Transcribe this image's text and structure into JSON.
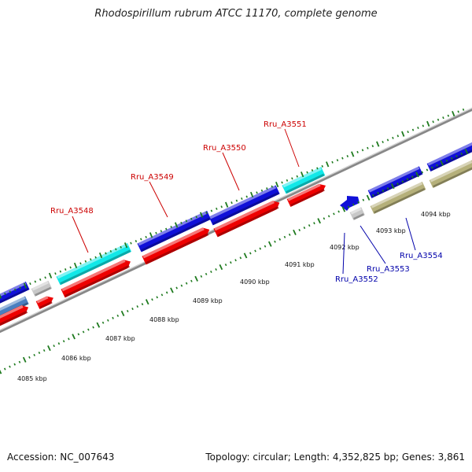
{
  "title": "Rhodospirillum rubrum ATCC 11170, complete genome",
  "footer": {
    "accession": "Accession: NC_007643",
    "summary": "Topology: circular; Length: 4,352,825 bp; Genes: 3,861"
  },
  "colors": {
    "blue_gene": "#1010d8",
    "red_gene": "#ee0000",
    "cyan_gene": "#11e8e8",
    "olive_gene": "#b5b07a",
    "grey_gene": "#c8c8c8",
    "steel_gene": "#4a7fc0",
    "backbone": "#888888",
    "tick": "#1e7a1e",
    "label_red": "#cc0000",
    "label_blue": "#0000aa"
  },
  "gene_labels_top": [
    "Rru_A3548",
    "Rru_A3549",
    "Rru_A3550",
    "Rru_A3551"
  ],
  "gene_labels_bottom": [
    "Rru_A3552",
    "Rru_A3553",
    "Rru_A3554"
  ],
  "kbp_labels": [
    "4085 kbp",
    "4086 kbp",
    "4087 kbp",
    "4088 kbp",
    "4089 kbp",
    "4090 kbp",
    "4091 kbp",
    "4092 kbp",
    "4093 kbp",
    "4094 kbp"
  ]
}
